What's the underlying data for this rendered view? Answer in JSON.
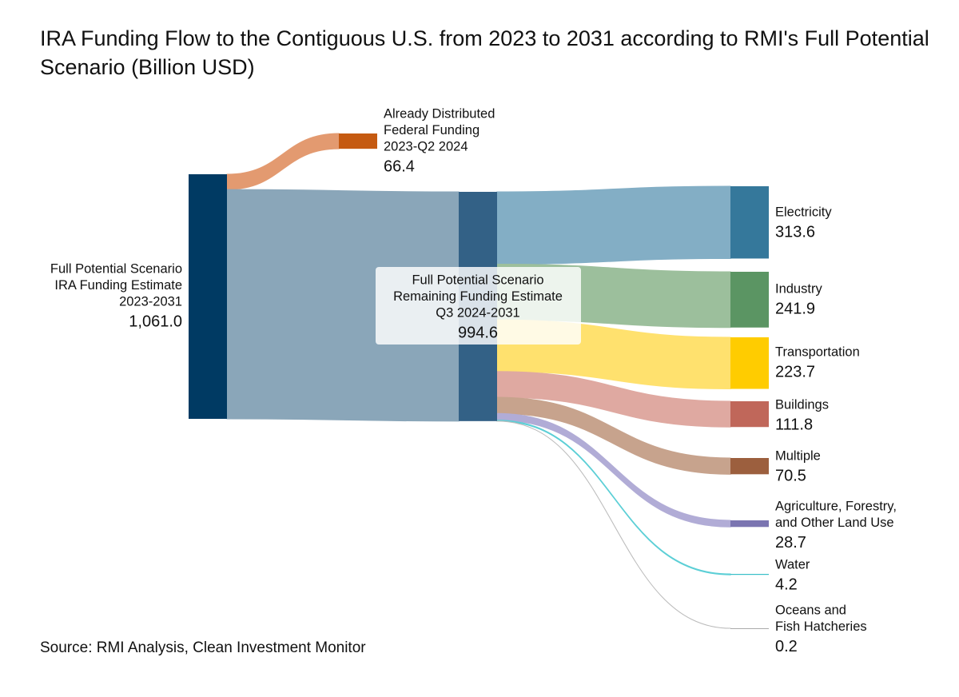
{
  "chart_data": {
    "type": "sankey",
    "title": "IRA Funding Flow to the Contiguous U.S. from 2023 to 2031 according to RMI's Full Potential Scenario (Billion USD)",
    "source": "Source: RMI Analysis, Clean Investment Monitor",
    "nodes": [
      {
        "label": [
          "Full Potential Scenario",
          "IRA Funding Estimate",
          "2023-2031"
        ],
        "value": 1061.0,
        "value_label": "1,061.0",
        "color": "#003a63"
      },
      {
        "label": [
          "Already Distributed",
          "Federal Funding",
          "2023-Q2 2024"
        ],
        "value": 66.4,
        "color": "#c55a11"
      },
      {
        "label": [
          "Full Potential Scenario",
          "Remaining Funding Estimate",
          "Q3 2024-2031"
        ],
        "value": 994.6,
        "color": "#336186"
      },
      {
        "label": [
          "Electricity"
        ],
        "value": 313.6,
        "color": "#35789b"
      },
      {
        "label": [
          "Industry"
        ],
        "value": 241.9,
        "color": "#5b9563"
      },
      {
        "label": [
          "Transportation"
        ],
        "value": 223.7,
        "color": "#ffcc00"
      },
      {
        "label": [
          "Buildings"
        ],
        "value": 111.8,
        "color": "#c0675a"
      },
      {
        "label": [
          "Multiple"
        ],
        "value": 70.5,
        "color": "#9c5f3e"
      },
      {
        "label": [
          "Agriculture, Forestry,",
          "and Other Land Use"
        ],
        "value": 28.7,
        "color": "#7b75b1"
      },
      {
        "label": [
          "Water"
        ],
        "value": 4.2,
        "color": "#3ac0c8"
      },
      {
        "label": [
          "Oceans and",
          "Fish Hatcheries"
        ],
        "value": 0.2,
        "color": "#aaaaaa"
      }
    ],
    "links": [
      {
        "source": 0,
        "target": 1,
        "value": 66.4,
        "color": "#e39a70"
      },
      {
        "source": 0,
        "target": 2,
        "value": 994.6,
        "color": "#8aa6b9"
      },
      {
        "source": 2,
        "target": 3,
        "value": 313.6,
        "color": "#83aec5"
      },
      {
        "source": 2,
        "target": 4,
        "value": 241.9,
        "color": "#9cbf9c"
      },
      {
        "source": 2,
        "target": 5,
        "value": 223.7,
        "color": "#ffe16e"
      },
      {
        "source": 2,
        "target": 6,
        "value": 111.8,
        "color": "#dfa9a1"
      },
      {
        "source": 2,
        "target": 7,
        "value": 70.5,
        "color": "#c7a38d"
      },
      {
        "source": 2,
        "target": 8,
        "value": 28.7,
        "color": "#b1acd6"
      },
      {
        "source": 2,
        "target": 9,
        "value": 4.2,
        "color": "#5ccfd6"
      },
      {
        "source": 2,
        "target": 10,
        "value": 0.2,
        "color": "#bbbbbb"
      }
    ]
  }
}
